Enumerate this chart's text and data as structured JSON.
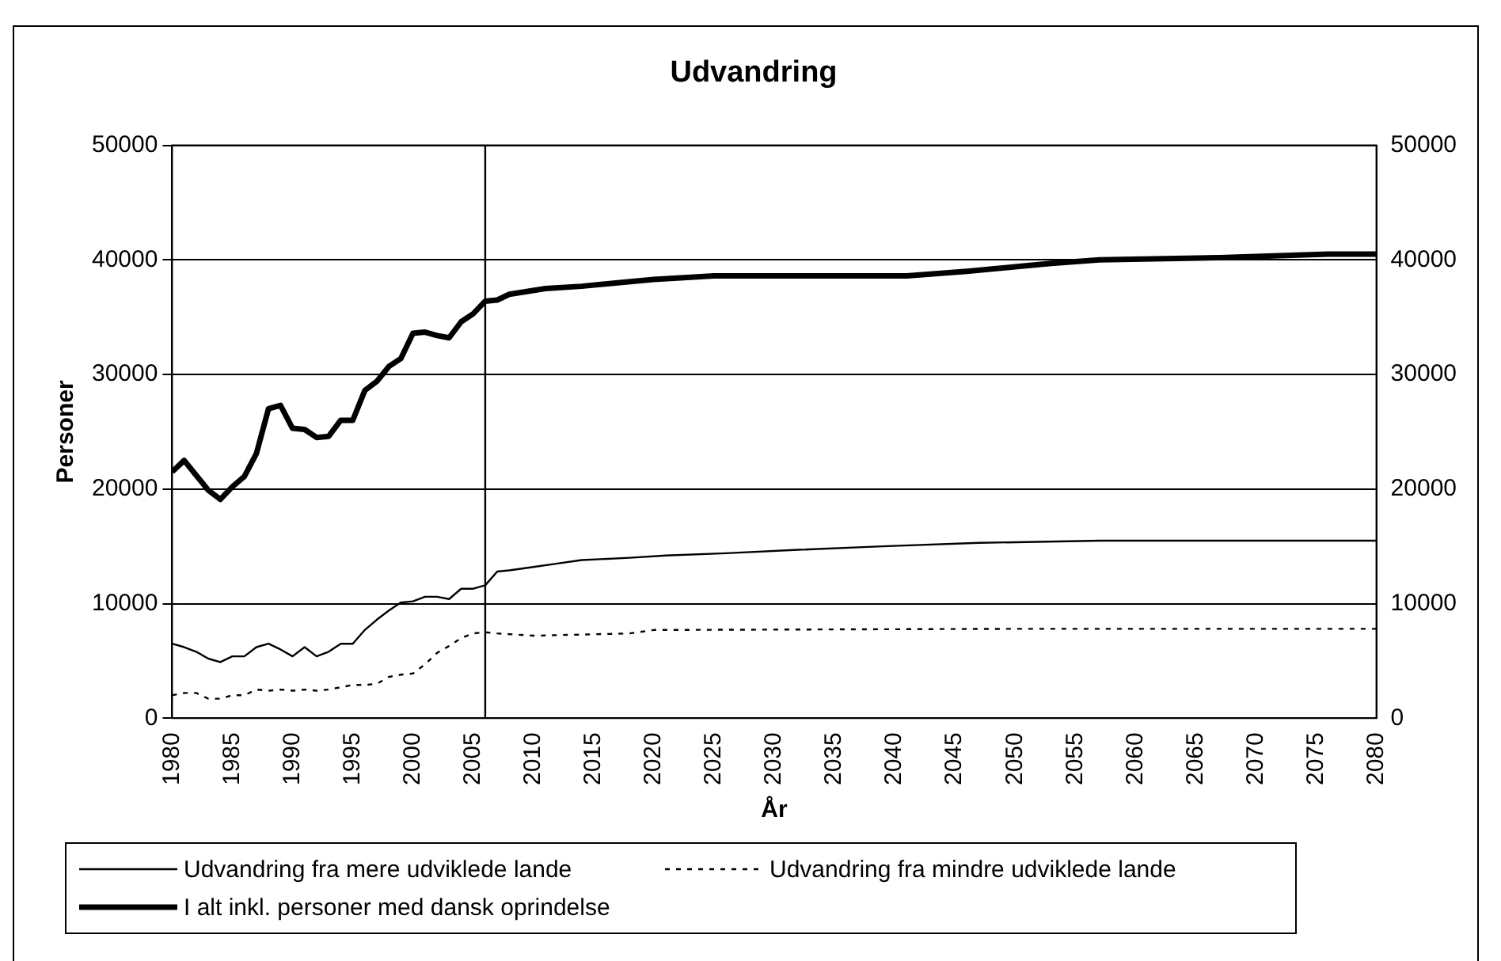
{
  "chart_data": {
    "type": "line",
    "title": "Udvandring",
    "xlabel": "År",
    "ylabel": "Personer",
    "xlim": [
      1980,
      2080
    ],
    "xticks": [
      1980,
      1985,
      1990,
      1995,
      2000,
      2005,
      2010,
      2015,
      2020,
      2025,
      2030,
      2035,
      2040,
      2045,
      2050,
      2055,
      2060,
      2065,
      2070,
      2075,
      2080
    ],
    "ylim": [
      0,
      50000
    ],
    "yticks": [
      0,
      10000,
      20000,
      30000,
      40000,
      50000
    ],
    "y2lim": [
      0,
      50000
    ],
    "y2ticks": [
      0,
      10000,
      20000,
      30000,
      40000,
      50000
    ],
    "grid": "y",
    "legend": "bottom",
    "marker": "none",
    "ref_lines": [
      {
        "axis": "x",
        "value": 2006,
        "color": "#000000"
      }
    ],
    "series": [
      {
        "name": "Udvandring fra mere udviklede lande",
        "color": "#000000",
        "line_style": "solid",
        "x": [
          1980,
          1981,
          1982,
          1983,
          1984,
          1985,
          1986,
          1987,
          1988,
          1989,
          1990,
          1991,
          1992,
          1993,
          1994,
          1995,
          1996,
          1997,
          1998,
          1999,
          2000,
          2001,
          2002,
          2003,
          2004,
          2005,
          2006,
          2007,
          2008,
          2010,
          2012,
          2014,
          2018,
          2021,
          2026,
          2032,
          2039,
          2047,
          2057,
          2080
        ],
        "values": [
          6500,
          6200,
          5800,
          5200,
          4900,
          5400,
          5400,
          6200,
          6500,
          6000,
          5400,
          6200,
          5400,
          5800,
          6500,
          6500,
          7700,
          8600,
          9400,
          10100,
          10200,
          10600,
          10600,
          10400,
          11300,
          11300,
          11600,
          12800,
          12900,
          13200,
          13500,
          13800,
          14000,
          14200,
          14400,
          14700,
          15000,
          15300,
          15500,
          15500
        ]
      },
      {
        "name": "Udvandring fra mindre udviklede lande",
        "color": "#000000",
        "line_style": "dotted",
        "x": [
          1980,
          1981,
          1982,
          1983,
          1984,
          1985,
          1986,
          1987,
          1988,
          1989,
          1990,
          1991,
          1992,
          1993,
          1994,
          1995,
          1996,
          1997,
          1998,
          1999,
          2000,
          2001,
          2002,
          2003,
          2004,
          2005,
          2006,
          2007,
          2010,
          2018,
          2020,
          2050,
          2080
        ],
        "values": [
          2000,
          2200,
          2200,
          1700,
          1700,
          2000,
          2000,
          2500,
          2400,
          2500,
          2400,
          2500,
          2400,
          2500,
          2700,
          2900,
          2900,
          3000,
          3600,
          3800,
          3900,
          4700,
          5700,
          6300,
          7000,
          7400,
          7500,
          7400,
          7200,
          7400,
          7700,
          7800,
          7800
        ]
      },
      {
        "name": "I alt inkl. personer med dansk oprindelse",
        "color": "#000000",
        "line_style": "solid",
        "x": [
          1980,
          1981,
          1982,
          1983,
          1984,
          1985,
          1986,
          1987,
          1988,
          1989,
          1990,
          1991,
          1992,
          1993,
          1994,
          1995,
          1996,
          1997,
          1998,
          1999,
          2000,
          2001,
          2002,
          2003,
          2004,
          2005,
          2006,
          2007,
          2008,
          2011,
          2014,
          2017,
          2020,
          2025,
          2041,
          2046,
          2050,
          2053,
          2057,
          2067,
          2076,
          2080
        ],
        "values": [
          21500,
          22500,
          21200,
          19900,
          19100,
          20200,
          21100,
          23100,
          27000,
          27300,
          25300,
          25200,
          24500,
          24600,
          26000,
          26000,
          28600,
          29400,
          30700,
          31400,
          33600,
          33700,
          33400,
          33200,
          34600,
          35300,
          36400,
          36500,
          37000,
          37500,
          37700,
          38000,
          38300,
          38600,
          38600,
          39000,
          39400,
          39700,
          40000,
          40200,
          40500,
          40500
        ]
      }
    ]
  }
}
